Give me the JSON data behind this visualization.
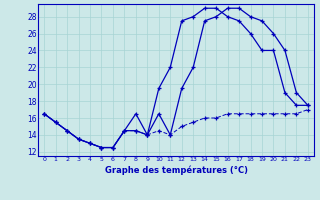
{
  "xlabel": "Graphe des températures (°C)",
  "background_color": "#cce8e8",
  "line_color": "#0000bb",
  "xlim": [
    -0.5,
    23.5
  ],
  "ylim": [
    11.5,
    29.5
  ],
  "yticks": [
    12,
    14,
    16,
    18,
    20,
    22,
    24,
    26,
    28
  ],
  "xticks": [
    0,
    1,
    2,
    3,
    4,
    5,
    6,
    7,
    8,
    9,
    10,
    11,
    12,
    13,
    14,
    15,
    16,
    17,
    18,
    19,
    20,
    21,
    22,
    23
  ],
  "series": {
    "temp": [
      16.5,
      15.5,
      14.5,
      13.5,
      13.0,
      12.5,
      12.5,
      14.5,
      14.5,
      14.0,
      16.5,
      14.0,
      19.5,
      22.0,
      27.5,
      28.0,
      29.0,
      29.0,
      28.0,
      27.5,
      26.0,
      24.0,
      19.0,
      17.5
    ],
    "min": [
      16.5,
      15.5,
      14.5,
      13.5,
      13.0,
      12.5,
      12.5,
      14.5,
      14.5,
      14.0,
      14.5,
      14.0,
      15.0,
      15.5,
      16.0,
      16.0,
      16.5,
      16.5,
      16.5,
      16.5,
      16.5,
      16.5,
      16.5,
      17.0
    ],
    "max": [
      16.5,
      15.5,
      14.5,
      13.5,
      13.0,
      12.5,
      12.5,
      14.5,
      16.5,
      14.0,
      19.5,
      22.0,
      27.5,
      28.0,
      29.0,
      29.0,
      28.0,
      27.5,
      26.0,
      24.0,
      24.0,
      19.0,
      17.5,
      17.5
    ]
  }
}
